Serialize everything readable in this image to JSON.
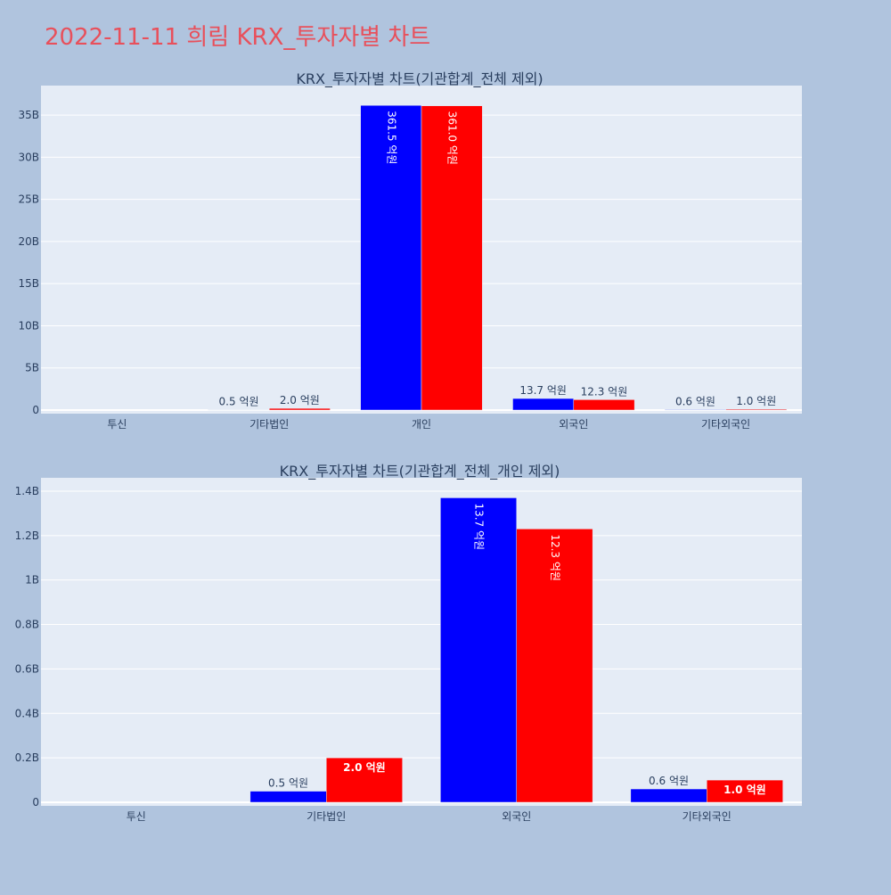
{
  "page_title": "2022-11-11 희림 KRX_투자자별 차트",
  "colors": {
    "page_background": "#b0c4de",
    "plot_background": "#e5ecf6",
    "title_color": "#e8505b",
    "text_color": "#2a3f5f",
    "gridline": "#ffffff",
    "series_1": "#0000ff",
    "series_2": "#ff0000"
  },
  "chart_data": [
    {
      "type": "bar",
      "title": "KRX_투자자별 차트(기관합계_전체 제외)",
      "categories": [
        "투신",
        "기타법인",
        "개인",
        "외국인",
        "기타외국인"
      ],
      "series": [
        {
          "color": "#0000ff",
          "values": [
            0,
            50000000,
            36150000000,
            1370000000,
            60000000
          ],
          "labels": [
            "",
            "0.5 억원",
            "361.5 억원",
            "13.7 억원",
            "0.6 억원"
          ]
        },
        {
          "color": "#ff0000",
          "values": [
            0,
            200000000,
            36100000000,
            1230000000,
            100000000
          ],
          "labels": [
            "",
            "2.0 억원",
            "361.0 억원",
            "12.3 억원",
            "1.0 억원"
          ]
        }
      ],
      "ylim": [
        0,
        38500000000
      ],
      "y_ticks": [
        0,
        5000000000,
        10000000000,
        15000000000,
        20000000000,
        25000000000,
        30000000000,
        35000000000
      ],
      "y_tick_labels": [
        "0",
        "5B",
        "10B",
        "15B",
        "20B",
        "25B",
        "30B",
        "35B"
      ],
      "grid": true,
      "legend": "none"
    },
    {
      "type": "bar",
      "title": "KRX_투자자별 차트(기관합계_전체_개인 제외)",
      "categories": [
        "투신",
        "기타법인",
        "외국인",
        "기타외국인"
      ],
      "series": [
        {
          "color": "#0000ff",
          "values": [
            0,
            50000000,
            1370000000,
            60000000
          ],
          "labels": [
            "",
            "0.5 억원",
            "13.7 억원",
            "0.6 억원"
          ]
        },
        {
          "color": "#ff0000",
          "values": [
            0,
            200000000,
            1230000000,
            100000000
          ],
          "labels": [
            "",
            "2.0 억원",
            "12.3 억원",
            "1.0 억원"
          ]
        }
      ],
      "ylim": [
        0,
        1460000000
      ],
      "y_ticks": [
        0,
        200000000,
        400000000,
        600000000,
        800000000,
        1000000000,
        1200000000,
        1400000000
      ],
      "y_tick_labels": [
        "0",
        "0.2B",
        "0.4B",
        "0.6B",
        "0.8B",
        "1B",
        "1.2B",
        "1.4B"
      ],
      "grid": true,
      "legend": "none"
    }
  ]
}
